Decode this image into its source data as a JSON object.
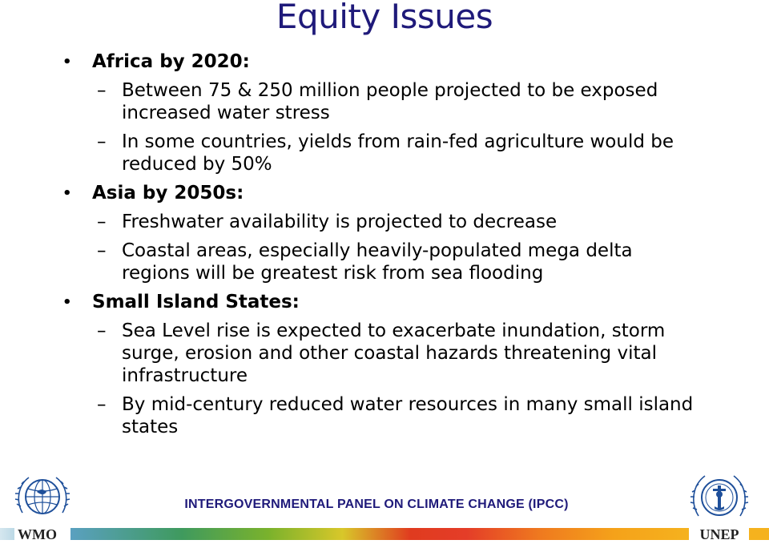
{
  "slide": {
    "title": "Equity Issues",
    "sections": [
      {
        "heading": "Africa by 2020:",
        "items": [
          "Between 75 & 250 million people projected to be exposed increased water stress",
          "In some countries, yields from rain-fed agriculture would be reduced by 50%"
        ]
      },
      {
        "heading": "Asia by 2050s:",
        "items": [
          "Freshwater availability is projected to decrease",
          "Coastal areas, especially heavily-populated mega delta regions will be greatest risk from sea flooding"
        ]
      },
      {
        "heading": "Small Island States:",
        "items": [
          "Sea Level rise is expected to exacerbate inundation, storm surge, erosion and other coastal hazards threatening vital infrastructure",
          "By mid-century reduced water resources in many small island states"
        ]
      }
    ]
  },
  "footer": {
    "text": "INTERGOVERNMENTAL PANEL ON CLIMATE CHANGE (IPCC)",
    "left_logo_label": "WMO",
    "right_logo_label": "UNEP",
    "left_logo_icon": "wmo-globe-emblem",
    "right_logo_icon": "unep-laurel-emblem",
    "title_color": "#1f1a7a"
  }
}
